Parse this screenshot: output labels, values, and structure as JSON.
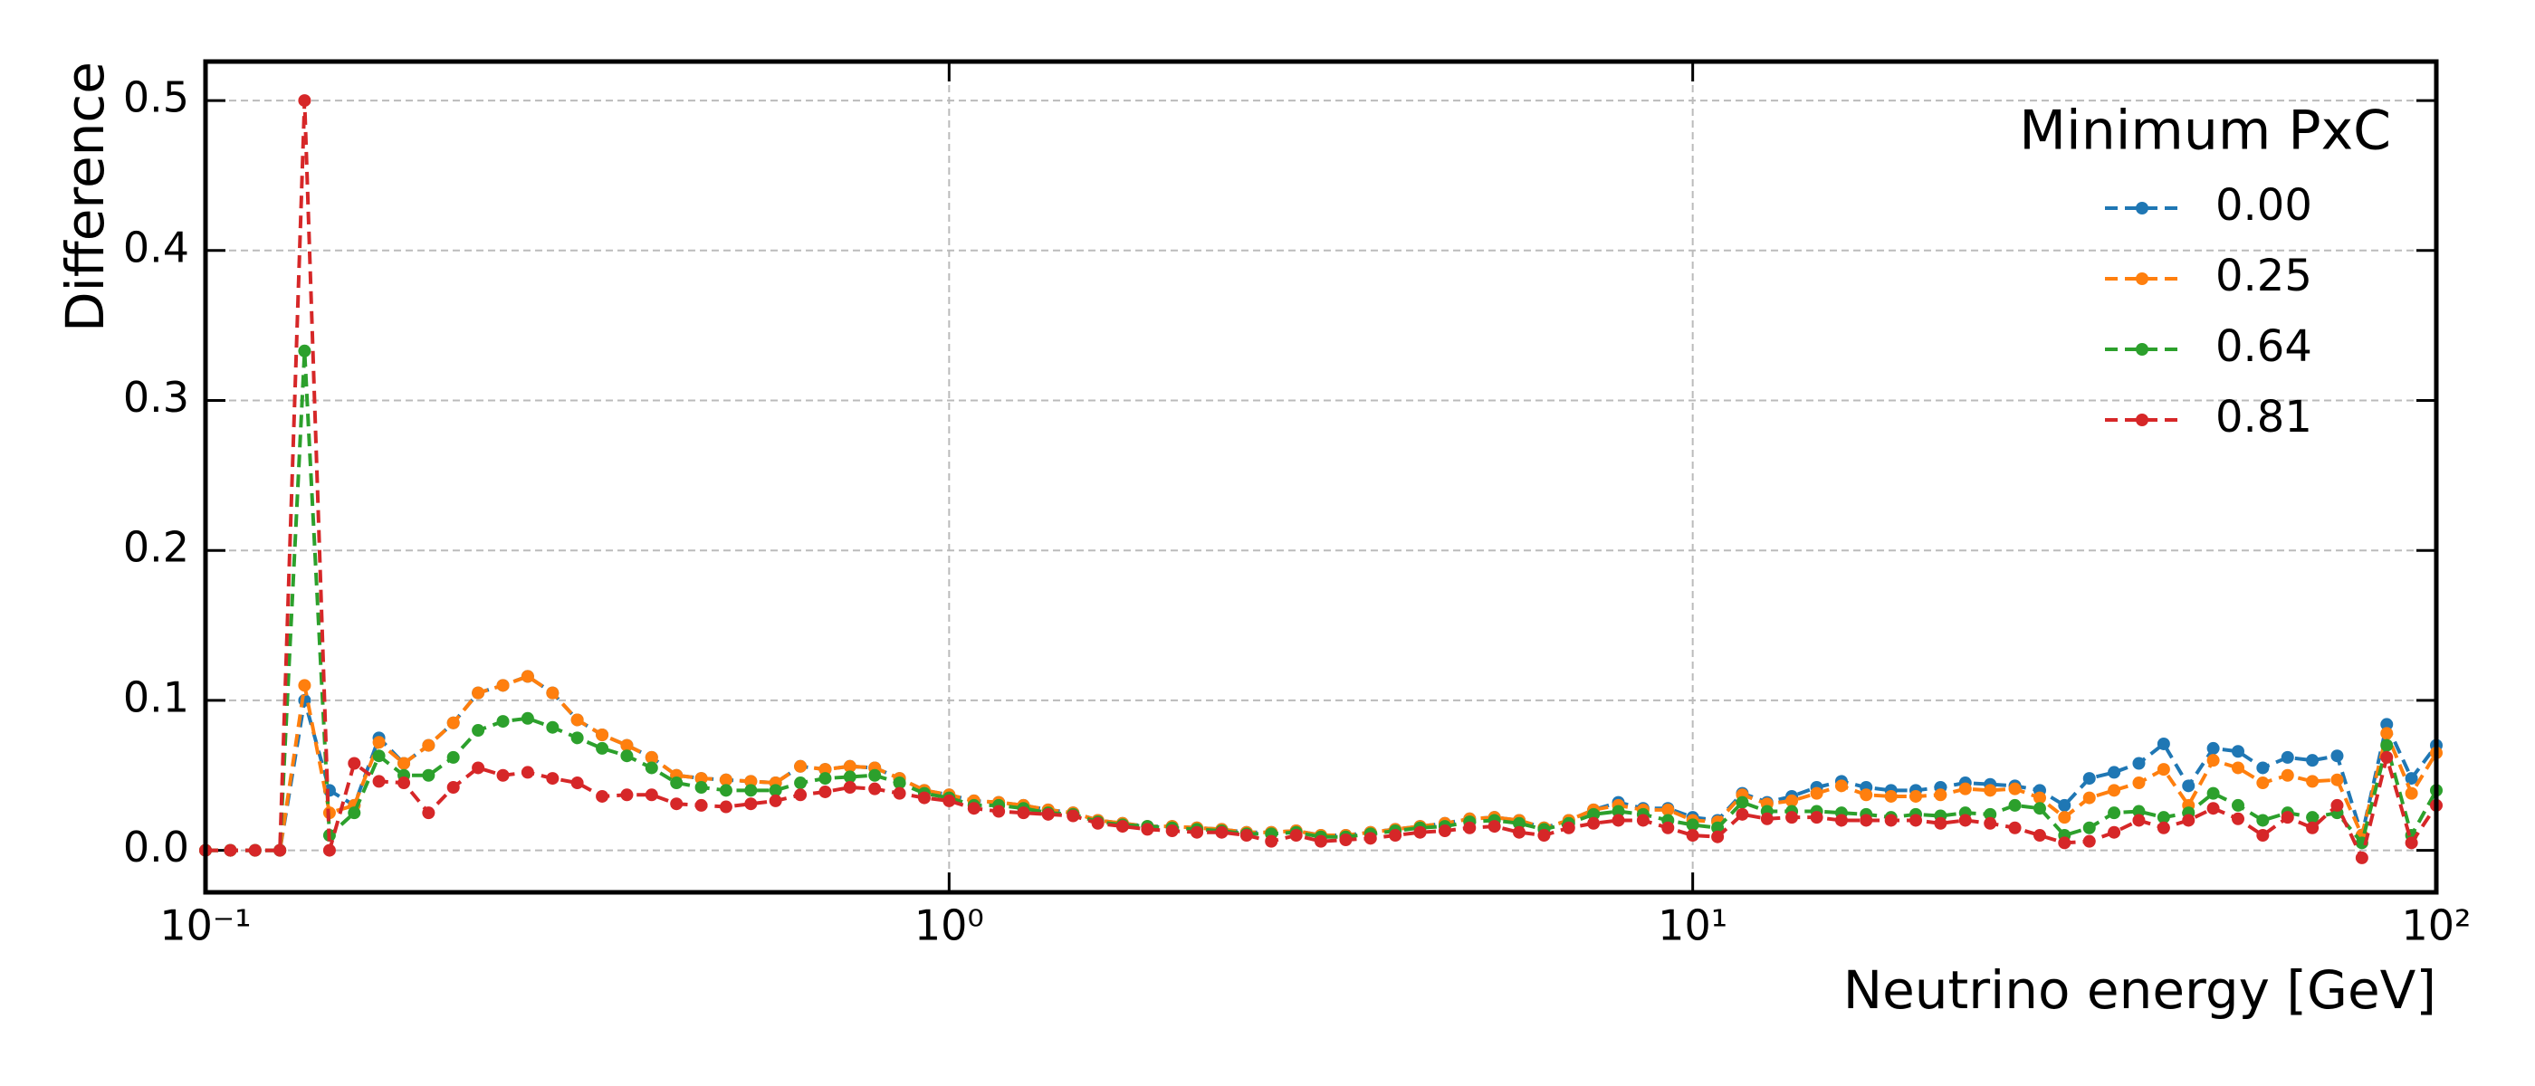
{
  "chart_data": {
    "type": "line",
    "xlabel": "Neutrino energy [GeV]",
    "ylabel": "Difference",
    "legend_title": "Minimum PxC",
    "legend": "upper right",
    "grid": true,
    "xscale": "log",
    "xlim": [
      0.1,
      100
    ],
    "xticks": [
      {
        "value": 0.1,
        "label": "10⁻¹"
      },
      {
        "value": 1,
        "label": "10⁰"
      },
      {
        "value": 10,
        "label": "10¹"
      },
      {
        "value": 100,
        "label": "10²"
      }
    ],
    "ylim": [
      -0.028,
      0.526
    ],
    "yticks": [
      {
        "value": 0,
        "label": "0.0"
      },
      0.1,
      0.2,
      0.3,
      0.4,
      0.5
    ],
    "x": [
      0.1,
      0.108,
      0.1166,
      0.1259,
      0.1359,
      0.1468,
      0.1585,
      0.1711,
      0.1848,
      0.1995,
      0.2154,
      0.2326,
      0.2512,
      0.2712,
      0.2929,
      0.3162,
      0.3415,
      0.3687,
      0.3981,
      0.4299,
      0.4642,
      0.5012,
      0.5412,
      0.5843,
      0.631,
      0.6813,
      0.7356,
      0.7943,
      0.8577,
      0.9261,
      1,
      1.08,
      1.166,
      1.259,
      1.359,
      1.468,
      1.585,
      1.711,
      1.848,
      1.995,
      2.154,
      2.326,
      2.512,
      2.712,
      2.929,
      3.162,
      3.415,
      3.687,
      3.981,
      4.299,
      4.642,
      5.012,
      5.412,
      5.843,
      6.31,
      6.813,
      7.356,
      7.943,
      8.577,
      9.261,
      10,
      10.8,
      11.66,
      12.59,
      13.59,
      14.68,
      15.85,
      17.11,
      18.48,
      19.95,
      21.54,
      23.26,
      25.12,
      27.12,
      29.29,
      31.62,
      34.15,
      36.87,
      39.81,
      42.99,
      46.42,
      50.12,
      54.12,
      58.43,
      63.1,
      68.13,
      73.56,
      79.43,
      85.77,
      92.61,
      100
    ],
    "series": [
      {
        "name": "0.00",
        "color": "#1f77b4",
        "values": [
          0,
          0,
          0,
          0,
          0.1,
          0.04,
          0.03,
          0.075,
          0.058,
          0.07,
          0.085,
          0.105,
          0.11,
          0.116,
          0.105,
          0.087,
          0.077,
          0.07,
          0.062,
          0.05,
          0.048,
          0.047,
          0.046,
          0.045,
          0.056,
          0.054,
          0.056,
          0.055,
          0.048,
          0.04,
          0.037,
          0.033,
          0.032,
          0.03,
          0.027,
          0.025,
          0.02,
          0.018,
          0.016,
          0.016,
          0.015,
          0.014,
          0.012,
          0.012,
          0.013,
          0.01,
          0.01,
          0.012,
          0.014,
          0.016,
          0.018,
          0.021,
          0.022,
          0.02,
          0.015,
          0.02,
          0.027,
          0.032,
          0.028,
          0.028,
          0.022,
          0.02,
          0.038,
          0.032,
          0.036,
          0.042,
          0.046,
          0.042,
          0.04,
          0.04,
          0.042,
          0.045,
          0.044,
          0.043,
          0.04,
          0.03,
          0.048,
          0.052,
          0.058,
          0.071,
          0.043,
          0.068,
          0.066,
          0.055,
          0.062,
          0.06,
          0.063,
          0.01,
          0.084,
          0.048,
          0.07
        ]
      },
      {
        "name": "0.25",
        "color": "#ff7f0e",
        "values": [
          0,
          0,
          0,
          0,
          0.11,
          0.025,
          0.03,
          0.072,
          0.058,
          0.07,
          0.085,
          0.105,
          0.11,
          0.116,
          0.105,
          0.087,
          0.077,
          0.07,
          0.062,
          0.05,
          0.048,
          0.047,
          0.046,
          0.045,
          0.056,
          0.054,
          0.056,
          0.055,
          0.048,
          0.04,
          0.037,
          0.033,
          0.032,
          0.03,
          0.027,
          0.025,
          0.02,
          0.018,
          0.016,
          0.016,
          0.015,
          0.014,
          0.012,
          0.012,
          0.013,
          0.01,
          0.01,
          0.012,
          0.014,
          0.016,
          0.018,
          0.021,
          0.022,
          0.02,
          0.015,
          0.02,
          0.027,
          0.03,
          0.027,
          0.027,
          0.02,
          0.019,
          0.037,
          0.031,
          0.033,
          0.038,
          0.043,
          0.037,
          0.036,
          0.036,
          0.037,
          0.041,
          0.04,
          0.041,
          0.035,
          0.022,
          0.035,
          0.04,
          0.045,
          0.054,
          0.03,
          0.06,
          0.055,
          0.045,
          0.05,
          0.046,
          0.047,
          0.01,
          0.078,
          0.038,
          0.065
        ]
      },
      {
        "name": "0.64",
        "color": "#2ca02c",
        "values": [
          0,
          0,
          0,
          0,
          0.333,
          0.01,
          0.025,
          0.063,
          0.05,
          0.05,
          0.062,
          0.08,
          0.086,
          0.088,
          0.082,
          0.075,
          0.068,
          0.063,
          0.055,
          0.045,
          0.042,
          0.04,
          0.04,
          0.04,
          0.045,
          0.048,
          0.049,
          0.05,
          0.045,
          0.038,
          0.035,
          0.03,
          0.03,
          0.028,
          0.025,
          0.024,
          0.019,
          0.017,
          0.016,
          0.015,
          0.014,
          0.013,
          0.011,
          0.011,
          0.012,
          0.009,
          0.009,
          0.011,
          0.013,
          0.015,
          0.016,
          0.019,
          0.02,
          0.018,
          0.014,
          0.018,
          0.024,
          0.026,
          0.024,
          0.02,
          0.017,
          0.015,
          0.032,
          0.026,
          0.026,
          0.026,
          0.025,
          0.024,
          0.022,
          0.024,
          0.023,
          0.025,
          0.024,
          0.03,
          0.028,
          0.01,
          0.015,
          0.025,
          0.026,
          0.022,
          0.025,
          0.038,
          0.03,
          0.02,
          0.025,
          0.022,
          0.025,
          0.005,
          0.07,
          0.01,
          0.04
        ]
      },
      {
        "name": "0.81",
        "color": "#d62728",
        "values": [
          0,
          0,
          0,
          0,
          0.5,
          0,
          0.058,
          0.046,
          0.045,
          0.025,
          0.042,
          0.055,
          0.05,
          0.052,
          0.048,
          0.045,
          0.036,
          0.037,
          0.037,
          0.031,
          0.03,
          0.029,
          0.031,
          0.033,
          0.037,
          0.039,
          0.042,
          0.041,
          0.038,
          0.035,
          0.033,
          0.028,
          0.026,
          0.025,
          0.024,
          0.023,
          0.018,
          0.016,
          0.014,
          0.013,
          0.012,
          0.012,
          0.01,
          0.006,
          0.01,
          0.006,
          0.007,
          0.008,
          0.01,
          0.012,
          0.013,
          0.015,
          0.016,
          0.012,
          0.01,
          0.015,
          0.018,
          0.02,
          0.02,
          0.015,
          0.01,
          0.009,
          0.024,
          0.021,
          0.022,
          0.022,
          0.02,
          0.02,
          0.02,
          0.02,
          0.018,
          0.02,
          0.018,
          0.015,
          0.01,
          0.005,
          0.006,
          0.012,
          0.02,
          0.015,
          0.02,
          0.028,
          0.021,
          0.01,
          0.022,
          0.015,
          0.03,
          -0.005,
          0.062,
          0.005,
          0.03
        ]
      }
    ]
  }
}
